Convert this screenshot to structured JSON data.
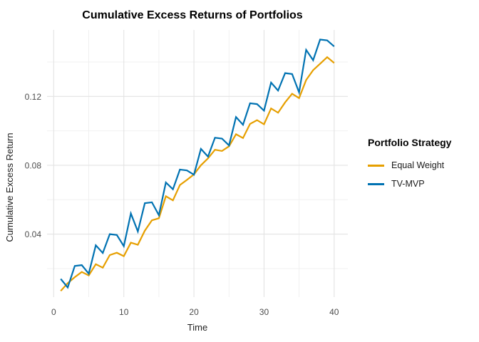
{
  "title": "Cumulative Excess Returns of Portfolios",
  "chart_data": {
    "type": "line",
    "title": "Cumulative Excess Returns of Portfolios",
    "xlabel": "Time",
    "ylabel": "Cumulative Excess Return",
    "legend_title": "Portfolio Strategy",
    "legend_position": "right",
    "grid": true,
    "background": "#FFFFFF",
    "xlim": [
      -0.95,
      41.95
    ],
    "ylim": [
      0.0034,
      0.1586
    ],
    "x_ticks": [
      0,
      10,
      20,
      30,
      40
    ],
    "x_minor": [
      5,
      15,
      25,
      35
    ],
    "y_ticks": [
      0.04,
      0.08,
      0.12
    ],
    "y_tick_labels": [
      "0.04",
      "0.08",
      "0.12"
    ],
    "y_minor": [
      0.02,
      0.06,
      0.1,
      0.14
    ],
    "colors": {
      "grid_major": "#E3E3E3",
      "grid_minor": "#F0F0F0",
      "axis_text": "#4d4d4d"
    },
    "x": [
      1,
      2,
      3,
      4,
      5,
      6,
      7,
      8,
      9,
      10,
      11,
      12,
      13,
      14,
      15,
      16,
      17,
      18,
      19,
      20,
      21,
      22,
      23,
      24,
      25,
      26,
      27,
      28,
      29,
      30,
      31,
      32,
      33,
      34,
      35,
      36,
      37,
      38,
      39,
      40
    ],
    "series": [
      {
        "name": "Equal Weight",
        "color": "#E69F00",
        "values": [
          0.007,
          0.0115,
          0.015,
          0.018,
          0.016,
          0.0225,
          0.0205,
          0.0278,
          0.0292,
          0.0272,
          0.035,
          0.0338,
          0.042,
          0.048,
          0.0492,
          0.062,
          0.0596,
          0.0685,
          0.0715,
          0.0747,
          0.08,
          0.084,
          0.089,
          0.0883,
          0.091,
          0.098,
          0.0958,
          0.104,
          0.1062,
          0.1038,
          0.113,
          0.1105,
          0.1165,
          0.1215,
          0.119,
          0.1295,
          0.1352,
          0.139,
          0.1428,
          0.1394
        ]
      },
      {
        "name": "TV-MVP",
        "color": "#0072B2",
        "values": [
          0.014,
          0.009,
          0.0215,
          0.022,
          0.017,
          0.0335,
          0.029,
          0.04,
          0.0395,
          0.033,
          0.052,
          0.0415,
          0.058,
          0.0585,
          0.051,
          0.07,
          0.066,
          0.0775,
          0.077,
          0.0745,
          0.0895,
          0.085,
          0.096,
          0.0955,
          0.0915,
          0.108,
          0.1035,
          0.116,
          0.1155,
          0.1117,
          0.128,
          0.1234,
          0.1335,
          0.133,
          0.1223,
          0.147,
          0.141,
          0.153,
          0.1525,
          0.149
        ]
      }
    ]
  }
}
